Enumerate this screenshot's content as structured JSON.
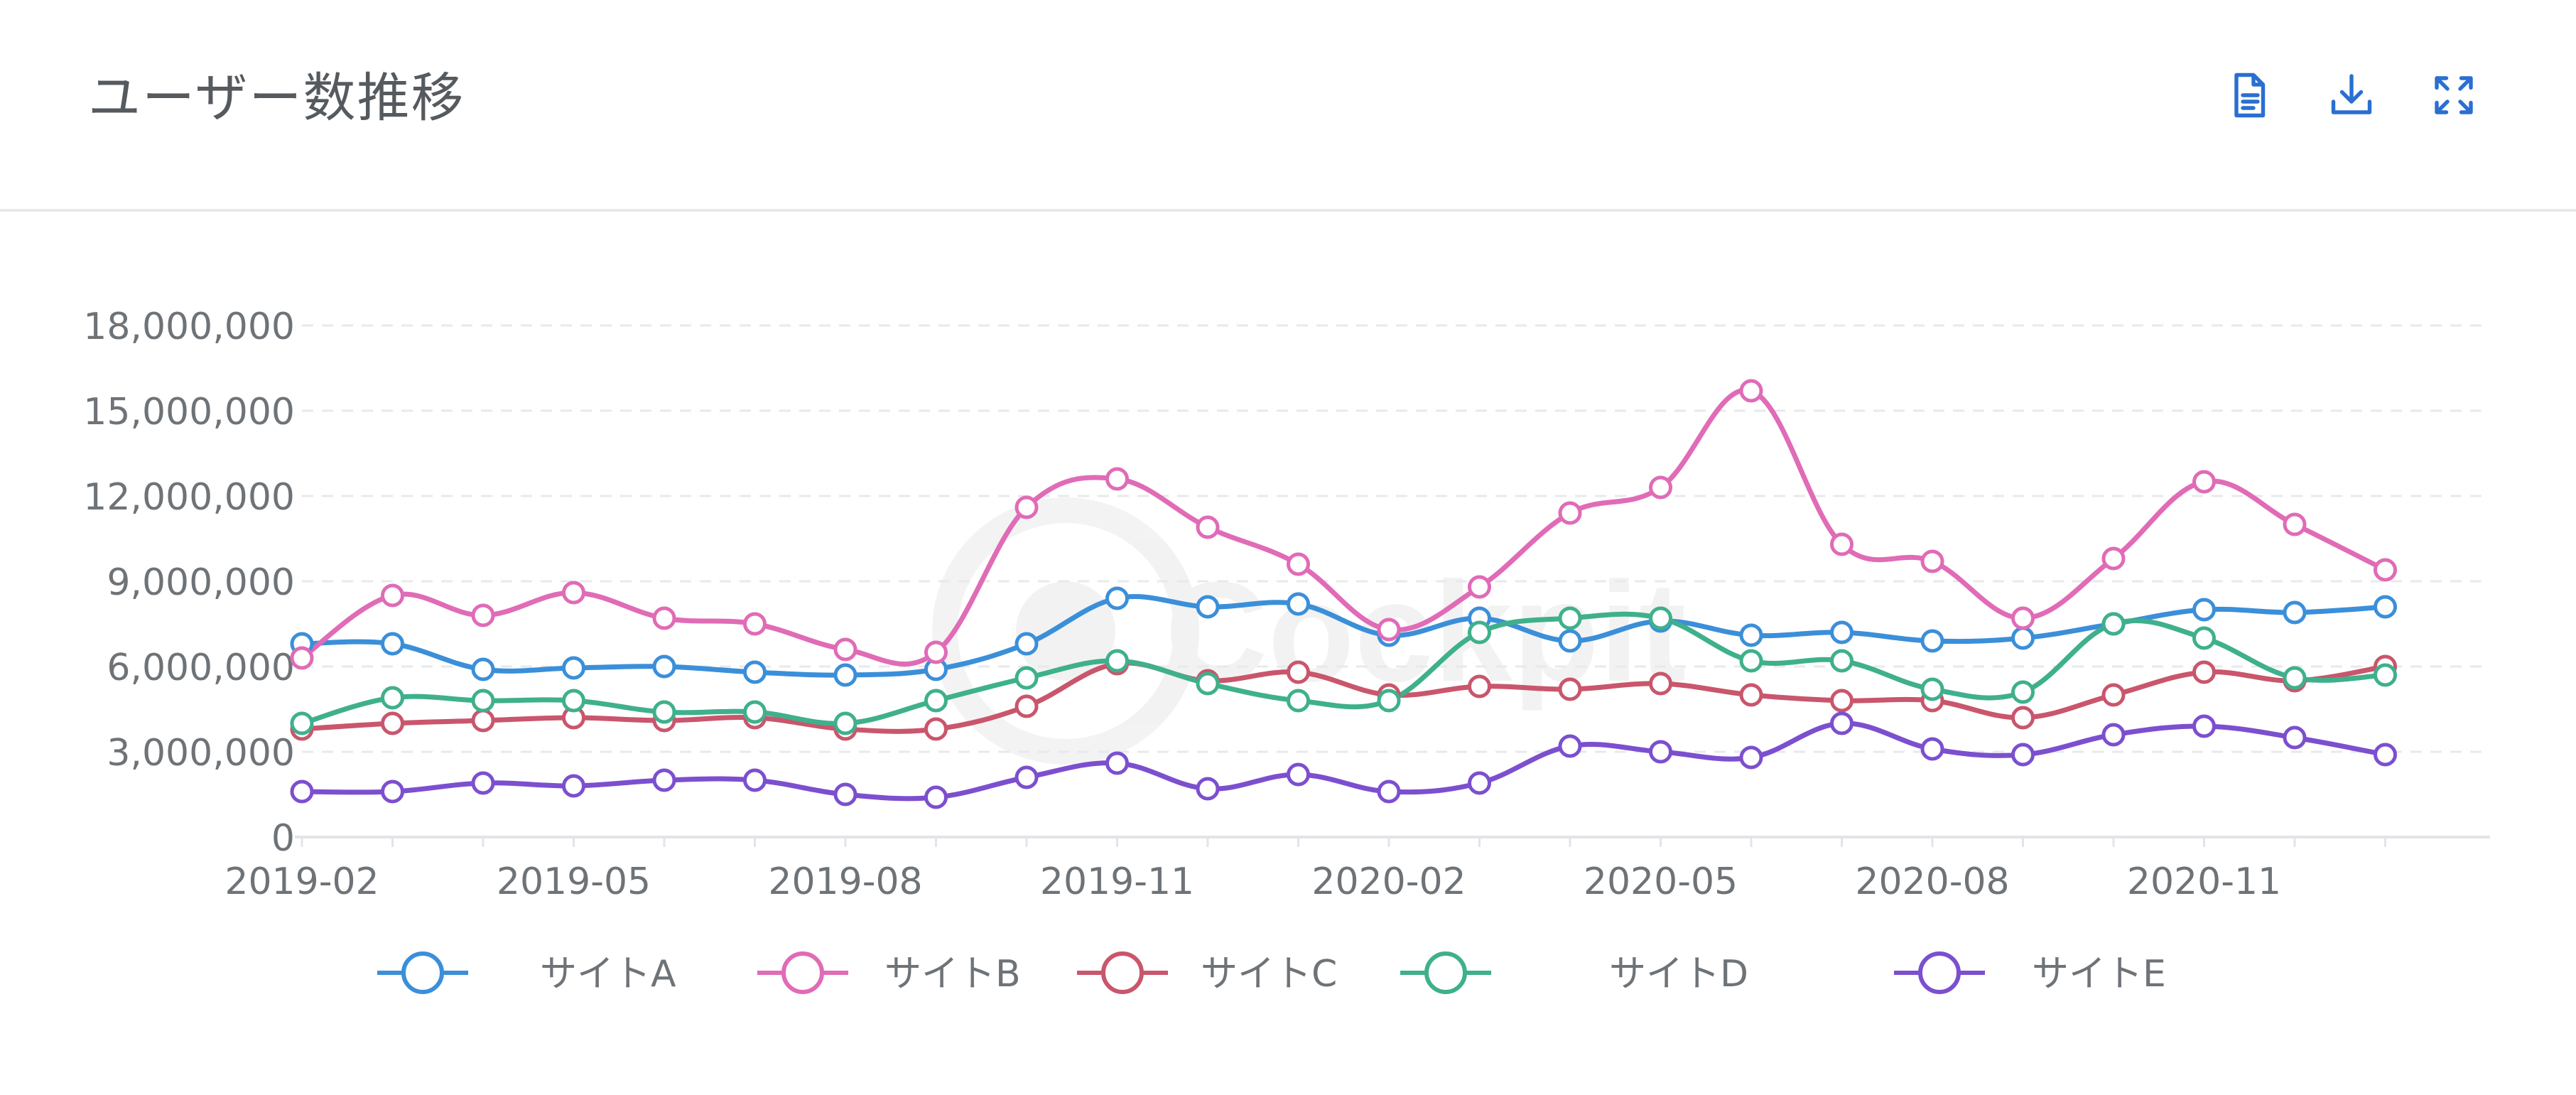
{
  "header": {
    "title": "ユーザー数推移",
    "icons": [
      "document-icon",
      "download-icon",
      "fullscreen-icon"
    ],
    "accent_color": "#2a6fd1"
  },
  "watermark": "Cockpit",
  "chart_data": {
    "type": "line",
    "title": "ユーザー数推移",
    "xlabel": "",
    "ylabel": "",
    "x": [
      "2019-02",
      "2019-03",
      "2019-04",
      "2019-05",
      "2019-06",
      "2019-07",
      "2019-08",
      "2019-09",
      "2019-10",
      "2019-11",
      "2019-12",
      "2020-01",
      "2020-02",
      "2020-03",
      "2020-04",
      "2020-05",
      "2020-06",
      "2020-07",
      "2020-08",
      "2020-09",
      "2020-10",
      "2020-11",
      "2020-12",
      "2021-01"
    ],
    "x_tick_labels": [
      "2019-02",
      "2019-05",
      "2019-08",
      "2019-11",
      "2020-02",
      "2020-05",
      "2020-08",
      "2020-11"
    ],
    "y_ticks": [
      0,
      3000000,
      6000000,
      9000000,
      12000000,
      15000000,
      18000000
    ],
    "y_tick_labels": [
      "0",
      "3,000,000",
      "6,000,000",
      "9,000,000",
      "12,000,000",
      "15,000,000",
      "18,000,000"
    ],
    "ylim": [
      0,
      18000000
    ],
    "grid": "horizontal-dashed",
    "legend_position": "bottom",
    "series": [
      {
        "name": "サイトA",
        "color": "#3b8fd9",
        "values": [
          6800000,
          6800000,
          5900000,
          5950000,
          6000000,
          5800000,
          5700000,
          5900000,
          6800000,
          8400000,
          8100000,
          8200000,
          7100000,
          7700000,
          6900000,
          7600000,
          7100000,
          7200000,
          6900000,
          7000000,
          7500000,
          8000000,
          7900000,
          8100000
        ]
      },
      {
        "name": "サイトB",
        "color": "#e06bb6",
        "values": [
          6300000,
          8500000,
          7800000,
          8600000,
          7700000,
          7500000,
          6600000,
          6500000,
          11600000,
          12600000,
          10900000,
          9600000,
          7300000,
          8800000,
          11400000,
          12300000,
          15700000,
          10300000,
          9700000,
          7700000,
          9800000,
          12500000,
          11000000,
          9400000
        ]
      },
      {
        "name": "サイトC",
        "color": "#c9566c",
        "values": [
          3800000,
          4000000,
          4100000,
          4200000,
          4100000,
          4200000,
          3800000,
          3800000,
          4600000,
          6100000,
          5500000,
          5800000,
          5000000,
          5300000,
          5200000,
          5400000,
          5000000,
          4800000,
          4800000,
          4200000,
          5000000,
          5800000,
          5500000,
          6000000
        ]
      },
      {
        "name": "サイトD",
        "color": "#3fb08c",
        "values": [
          4000000,
          4900000,
          4800000,
          4800000,
          4400000,
          4400000,
          4000000,
          4800000,
          5600000,
          6200000,
          5400000,
          4800000,
          4800000,
          7200000,
          7700000,
          7700000,
          6200000,
          6200000,
          5200000,
          5100000,
          7500000,
          7000000,
          5600000,
          5700000
        ]
      },
      {
        "name": "サイトE",
        "color": "#7c4fcf",
        "values": [
          1600000,
          1600000,
          1900000,
          1800000,
          2000000,
          2000000,
          1500000,
          1400000,
          2100000,
          2600000,
          1700000,
          2200000,
          1600000,
          1900000,
          3200000,
          3000000,
          2800000,
          4000000,
          3100000,
          2900000,
          3600000,
          3900000,
          3500000,
          2900000
        ]
      }
    ]
  }
}
